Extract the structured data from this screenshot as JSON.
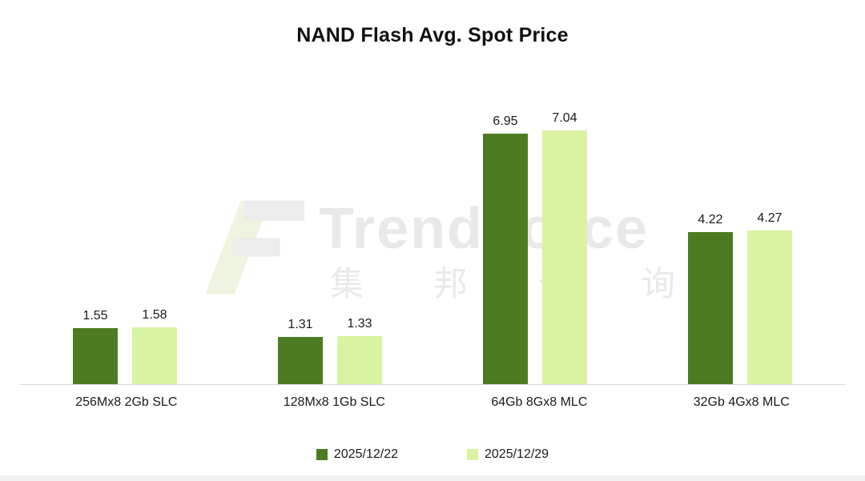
{
  "title": "NAND Flash Avg. Spot Price",
  "watermark": {
    "latin": "TrendForce",
    "cjk": "集 邦 咨 询"
  },
  "legend": [
    {
      "label": "2025/12/22",
      "color": "#4d7b21"
    },
    {
      "label": "2025/12/29",
      "color": "#d9f3a2"
    }
  ],
  "colors": {
    "series_dark_green": "#4d7b21",
    "series_light_green": "#d9f3a2",
    "axis_line": "#d8d8d8",
    "watermark_gray": "#e9e9e9"
  },
  "chart_data": {
    "type": "bar",
    "title": "NAND Flash Avg. Spot Price",
    "categories": [
      "256Mx8 2Gb SLC",
      "128Mx8 1Gb SLC",
      "64Gb 8Gx8 MLC",
      "32Gb 4Gx8 MLC"
    ],
    "series": [
      {
        "name": "2025/12/22",
        "color": "#4d7b21",
        "values": [
          1.55,
          1.31,
          6.95,
          4.22
        ]
      },
      {
        "name": "2025/12/29",
        "color": "#d9f3a2",
        "values": [
          1.58,
          1.33,
          7.04,
          4.27
        ]
      }
    ],
    "xlabel": "",
    "ylabel": "",
    "ylim": [
      0,
      7.9
    ],
    "grid": false,
    "value_labels": true,
    "value_label_decimals": 2,
    "legend_position": "bottom"
  }
}
